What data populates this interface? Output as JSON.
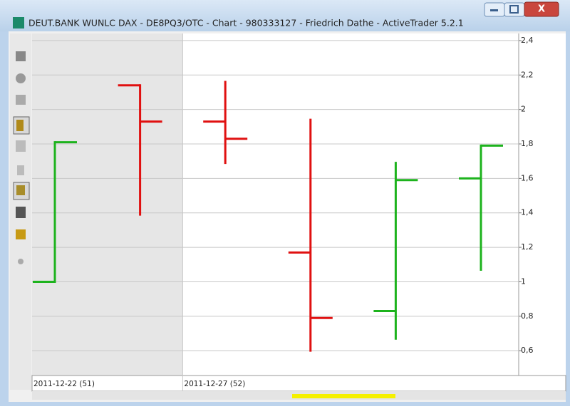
{
  "window": {
    "title": "DEUT.BANK WUNLC DAX - DE8PQ3/OTC - Chart - 980333127 - Friedrich Dathe - ActiveTrader 5.2.1"
  },
  "chart_data": {
    "type": "ohlc",
    "categories": [
      "2011-12-22 (51)",
      null,
      "2011-12-27 (52)",
      null,
      null,
      null
    ],
    "open": [
      1.0,
      2.14,
      1.93,
      1.17,
      0.83,
      1.6
    ],
    "high": [
      1.81,
      2.14,
      2.16,
      1.94,
      1.69,
      1.79
    ],
    "low": [
      1.0,
      1.39,
      1.69,
      0.6,
      0.67,
      1.07
    ],
    "close": [
      1.81,
      1.93,
      1.83,
      0.79,
      1.59,
      1.79
    ],
    "up_color": "#1db31d",
    "down_color": "#e01010",
    "ylim": [
      0.456,
      2.441
    ],
    "yticks": [
      {
        "value": 0.6,
        "label": "0,6"
      },
      {
        "value": 0.8,
        "label": "0,8"
      },
      1,
      {
        "value": 1.2,
        "label": "1,2"
      },
      {
        "value": 1.4,
        "label": "1,4"
      },
      {
        "value": 1.6,
        "label": "1,6"
      },
      {
        "value": 1.8,
        "label": "1,8"
      },
      2,
      {
        "value": 2.2,
        "label": "2,2"
      },
      {
        "value": 2.4,
        "label": "2,4"
      }
    ],
    "grid": true
  }
}
